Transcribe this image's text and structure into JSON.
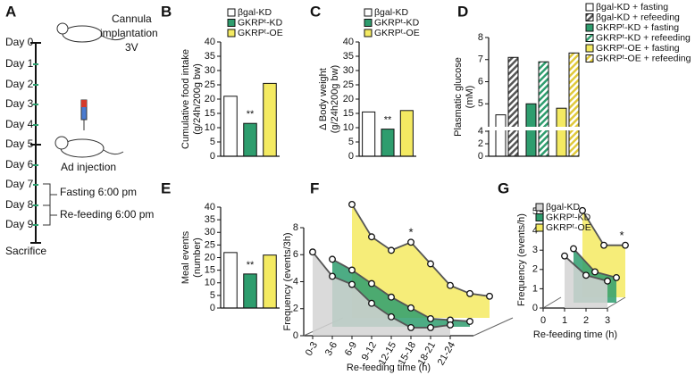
{
  "timeline": {
    "panel": "A",
    "days": [
      "Day 0",
      "Day 1",
      "Day 2",
      "Day 3",
      "Day 4",
      "Day 5",
      "Day 6",
      "Day 7",
      "Day 8",
      "Day 9"
    ],
    "end": "Sacrifice",
    "surgery": [
      "Cannula",
      "implantation",
      "3V"
    ],
    "injection": "Ad injection",
    "fasting": "Fasting 6:00 pm",
    "refeeding": "Re-feeding 6:00 pm"
  },
  "chart_data": [
    {
      "type": "bar",
      "panel": "B",
      "ylabel": [
        "Cumulative food intake",
        "(g/24h/200g bw)"
      ],
      "categories": [
        "βgal-KD",
        "GKRPᵗ-KD",
        "GKRPᵗ-OE"
      ],
      "values": [
        21,
        11.5,
        25.5
      ],
      "colors": [
        "#ffffff",
        "#2e9d6e",
        "#f4ea62"
      ],
      "ylim": [
        0,
        40
      ],
      "yticks": [
        0,
        5,
        10,
        15,
        20,
        25,
        30,
        35,
        40
      ],
      "annotation": "**",
      "legend": true
    },
    {
      "type": "bar",
      "panel": "C",
      "ylabel": [
        "Δ Body weight",
        "(g/24h200g bw)"
      ],
      "categories": [
        "βgal-KD",
        "GKRPᵗ-KD",
        "GKRPᵗ-OE"
      ],
      "values": [
        15.5,
        9.5,
        16
      ],
      "colors": [
        "#ffffff",
        "#2e9d6e",
        "#f4ea62"
      ],
      "ylim": [
        0,
        40
      ],
      "yticks": [
        0,
        5,
        10,
        15,
        20,
        25,
        30,
        35,
        40
      ],
      "annotation": "**",
      "legend": true
    },
    {
      "type": "broken-bar",
      "panel": "D",
      "ylabel": [
        "Plasmatic glucose",
        "(mM)"
      ],
      "categories": [
        "βgal-KD + fasting",
        "βgal-KD + refeeding",
        "GKRPᵗ-KD + fasting",
        "GKRPᵗ-KD + refeeding",
        "GKRPᵗ-OE + fasting",
        "GKRPᵗ-OE + refeeding"
      ],
      "values": [
        4.5,
        7.1,
        5.0,
        6.9,
        4.8,
        7.3
      ],
      "colors": [
        "#ffffff",
        "#555555",
        "#2e9d6e",
        "#2e9d6e",
        "#f4ea62",
        "#e0c93a"
      ],
      "hatched": [
        false,
        true,
        false,
        true,
        false,
        true
      ],
      "ylim": [
        0,
        8
      ],
      "ybreak": 4,
      "yticks": [
        0,
        2,
        4,
        5,
        6,
        7,
        8
      ],
      "legend": true
    },
    {
      "type": "bar",
      "panel": "E",
      "ylabel": [
        "Meal events",
        "(number)"
      ],
      "categories": [
        "βgal-KD",
        "GKRPᵗ-KD",
        "GKRPᵗ-OE"
      ],
      "values": [
        22,
        13.5,
        21
      ],
      "colors": [
        "#ffffff",
        "#2e9d6e",
        "#f4ea62"
      ],
      "ylim": [
        0,
        40
      ],
      "yticks": [
        0,
        5,
        10,
        15,
        20,
        25,
        30,
        35,
        40
      ],
      "annotation": "**",
      "legend": false
    },
    {
      "type": "line3d",
      "panel": "F",
      "ylabel": "Frequency (events/3h)",
      "xlabel": "Re-feeding time (h)",
      "categories": [
        "0-3",
        "3-6",
        "6-9",
        "9-12",
        "12-15",
        "15-18",
        "18-21",
        "21-24"
      ],
      "series": [
        {
          "name": "GKRPᵗ-OE",
          "color": "#f4ea62",
          "values": [
            8.4,
            6.0,
            5.0,
            5.6,
            4.0,
            2.4,
            1.8,
            1.6
          ]
        },
        {
          "name": "GKRPᵗ-KD",
          "color": "#2e9d6e",
          "values": [
            5.0,
            4.2,
            3.2,
            2.2,
            1.4,
            0.6,
            0.5,
            0.4
          ]
        },
        {
          "name": "βgal-KD",
          "color": "#d4d4d4",
          "values": [
            6.2,
            4.4,
            3.8,
            2.4,
            1.4,
            0.6,
            0.6,
            0.8
          ]
        }
      ],
      "ylim": [
        0,
        8
      ],
      "yticks": [
        0,
        2,
        4,
        6,
        8
      ],
      "annotation": "*",
      "legend": false
    },
    {
      "type": "line3d",
      "panel": "G",
      "ylabel": "Frequency (events/h)",
      "xlabel": "Re-feeding time (h)",
      "x": [
        1,
        2,
        3
      ],
      "xlim": [
        0,
        3
      ],
      "xticks": [
        0,
        1,
        2,
        3
      ],
      "series": [
        {
          "name": "GKRPᵗ-OE",
          "color": "#f4ea62",
          "values": [
            4.5,
            2.7,
            2.7
          ]
        },
        {
          "name": "GKRPᵗ-KD",
          "color": "#2e9d6e",
          "values": [
            2.8,
            1.6,
            1.3
          ]
        },
        {
          "name": "βgal-KD",
          "color": "#d4d4d4",
          "values": [
            2.7,
            1.7,
            1.4
          ]
        }
      ],
      "ylim": [
        0,
        5
      ],
      "yticks": [
        0,
        1,
        2,
        3,
        4,
        5
      ],
      "annotation": "*",
      "legend": true
    }
  ]
}
